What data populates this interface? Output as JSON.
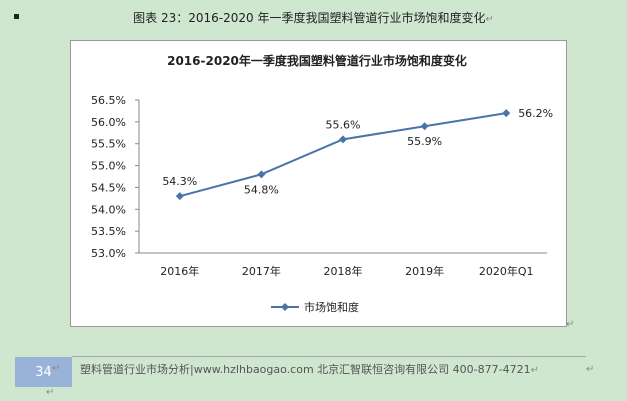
{
  "caption": "图表 23：2016-2020 年一季度我国塑料管道行业市场饱和度变化",
  "paragraph_mark": "↵",
  "footer": {
    "page_number": "34",
    "text": "塑料管道行业市场分析|www.hzlhbaogao.com 北京汇智联恒咨询有限公司  400-877-4721"
  },
  "colors": {
    "page_bg": "#cfe6cf",
    "series": "#4a74a8",
    "page_badge": "#98b2d8"
  },
  "chart_data": {
    "type": "line",
    "title": "2016-2020年一季度我国塑料管道行业市场饱和度变化",
    "categories": [
      "2016年",
      "2017年",
      "2018年",
      "2019年",
      "2020年Q1"
    ],
    "series": [
      {
        "name": "市场饱和度",
        "values": [
          54.3,
          54.8,
          55.6,
          55.9,
          56.2
        ],
        "marker": "diamond"
      }
    ],
    "data_labels": [
      "54.3%",
      "54.8%",
      "55.6%",
      "55.9%",
      "56.2%"
    ],
    "y_ticks": [
      "53.0%",
      "53.5%",
      "54.0%",
      "54.5%",
      "55.0%",
      "55.5%",
      "56.0%",
      "56.5%"
    ],
    "ylim": [
      53.0,
      56.5
    ],
    "y_step": 0.5,
    "xlabel": "",
    "ylabel": "",
    "grid": false,
    "legend": "bottom"
  }
}
